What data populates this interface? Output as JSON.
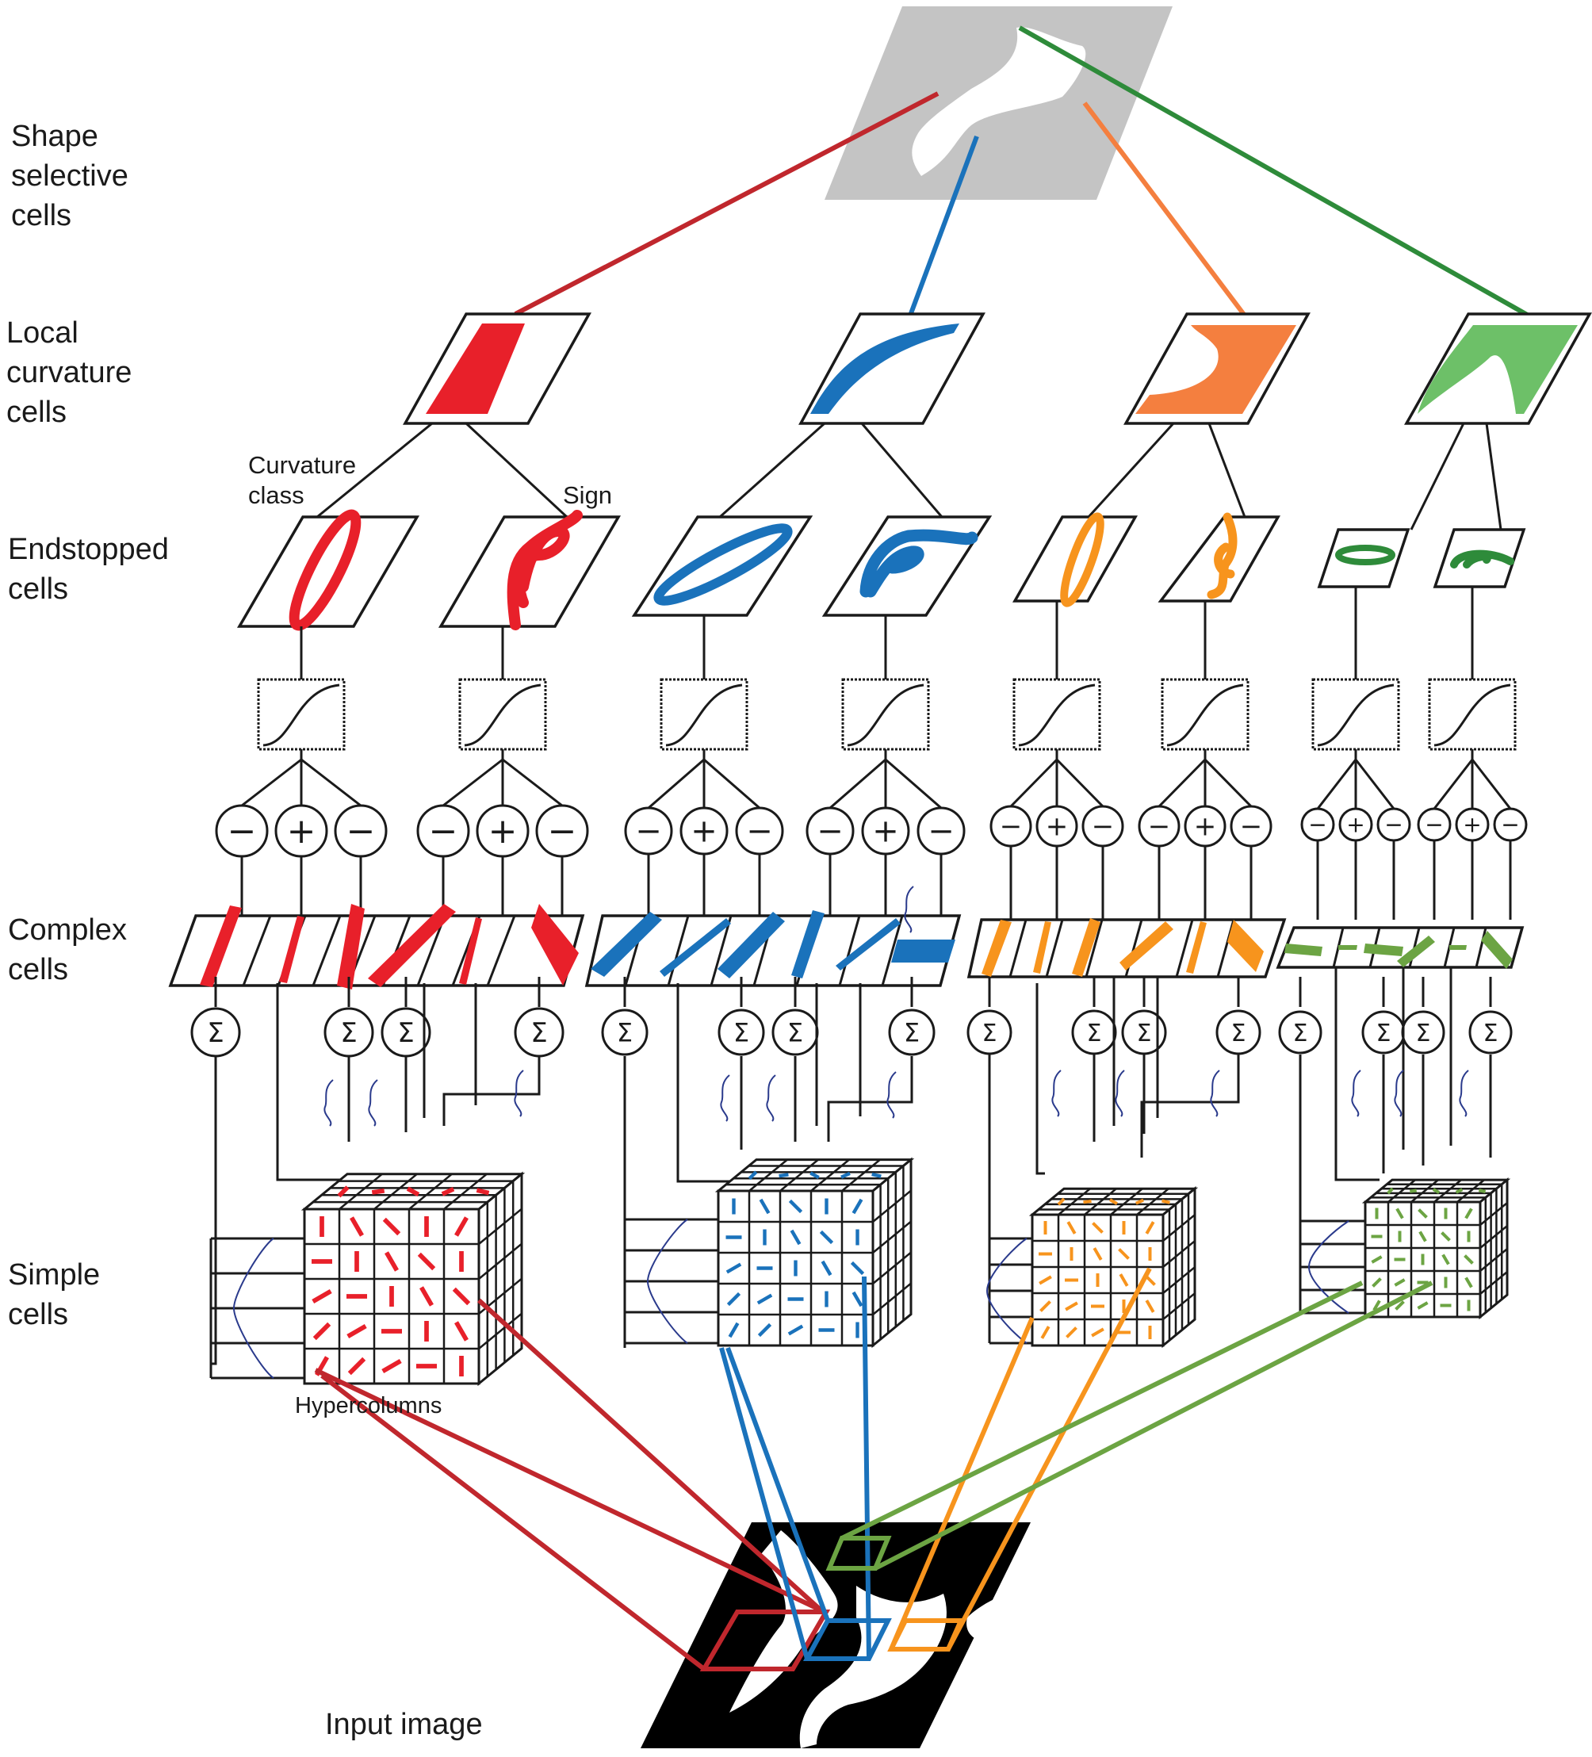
{
  "labels": {
    "shape": "Shape\nselective\ncells",
    "local": "Local\ncurvature\ncells",
    "endstopped": "Endstopped\ncells",
    "complex": "Complex\ncells",
    "simple": "Simple\ncells",
    "curvature_class": "Curvature\nclass",
    "sign": "Sign",
    "hypercolumns": "Hypercolumns",
    "input": "Input image"
  },
  "symbols": {
    "minus": "−",
    "plus": "+",
    "sum": "Σ"
  },
  "colors": {
    "red": "#e8202a",
    "dark_red": "#c0272d",
    "blue": "#1a72bb",
    "orange_local": "#f47f3f",
    "orange": "#f7941d",
    "green_local": "#6dc068",
    "green_dark": "#2e8b3a",
    "green": "#6ca443",
    "gray": "#c4c4c4",
    "wave": "#2a3a8c"
  },
  "icons": [
    "sigmoid-icon",
    "sum-icon",
    "gaussian-wave-icon",
    "hypercolumn-cube-icon"
  ]
}
